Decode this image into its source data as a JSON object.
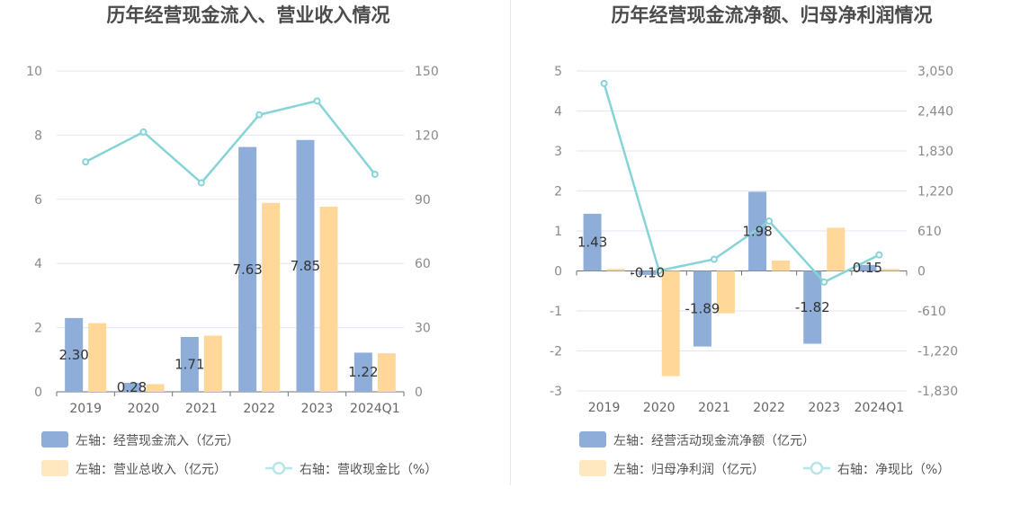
{
  "chart_data": [
    {
      "type": "bar",
      "title": "历年经营现金流入、营业收入情况",
      "categories": [
        "2019",
        "2020",
        "2021",
        "2022",
        "2023",
        "2024Q1"
      ],
      "left_axis": {
        "ylim": [
          0,
          10
        ],
        "ticks": [
          "0",
          "2",
          "4",
          "6",
          "8",
          "10"
        ]
      },
      "right_axis": {
        "ylim": [
          0,
          150
        ],
        "ticks": [
          "0",
          "30",
          "60",
          "90",
          "120",
          "150"
        ]
      },
      "series": [
        {
          "name": "左轴：经营现金流入（亿元）",
          "kind": "bar",
          "axis": "left",
          "color": "#8eadd9",
          "values": [
            2.3,
            0.28,
            1.71,
            7.63,
            7.85,
            1.22
          ],
          "labels": [
            "2.30",
            "0.28",
            "1.71",
            "7.63",
            "7.85",
            "1.22"
          ]
        },
        {
          "name": "左轴：营业总收入（亿元）",
          "kind": "bar",
          "axis": "left",
          "color": "#ffd899",
          "values": [
            2.14,
            0.24,
            1.75,
            5.89,
            5.77,
            1.2
          ]
        },
        {
          "name": "右轴：营收现金比（%）",
          "kind": "line",
          "axis": "right",
          "color": "#86d3d8",
          "values": [
            107.5,
            121.5,
            97.7,
            129.5,
            136.0,
            101.7
          ]
        }
      ],
      "grid": true,
      "legend_position": "bottom-left"
    },
    {
      "type": "bar",
      "title": "历年经营现金流净额、归母净利润情况",
      "categories": [
        "2019",
        "2020",
        "2021",
        "2022",
        "2023",
        "2024Q1"
      ],
      "left_axis": {
        "ylim": [
          -3,
          5
        ],
        "ticks": [
          "-3",
          "-2",
          "-1",
          "0",
          "1",
          "2",
          "3",
          "4",
          "5"
        ]
      },
      "right_axis": {
        "ylim": [
          -1830,
          3050
        ],
        "ticks": [
          "-1,830",
          "-1,220",
          "-610",
          "0",
          "610",
          "1,220",
          "1,830",
          "2,440",
          "3,050"
        ]
      },
      "series": [
        {
          "name": "左轴：经营活动现金流净额（亿元）",
          "kind": "bar",
          "axis": "left",
          "color": "#8eadd9",
          "values": [
            1.43,
            -0.1,
            -1.89,
            1.98,
            -1.82,
            0.15
          ],
          "labels": [
            "1.43",
            "-0.10",
            "-1.89",
            "1.98",
            "-1.82",
            "0.15"
          ]
        },
        {
          "name": "左轴：归母净利润（亿元）",
          "kind": "bar",
          "axis": "left",
          "color": "#ffd899",
          "values": [
            0.05,
            -2.63,
            -1.06,
            0.26,
            1.08,
            0.05
          ]
        },
        {
          "name": "右轴：净现比（%）",
          "kind": "line",
          "axis": "right",
          "color": "#86d3d8",
          "values": [
            2860,
            4,
            178,
            760,
            -170,
            245
          ]
        }
      ],
      "grid": true,
      "legend_position": "bottom-left"
    }
  ]
}
